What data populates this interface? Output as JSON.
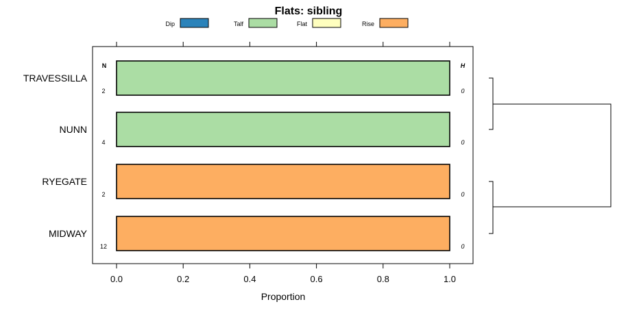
{
  "chart_data": {
    "type": "bar",
    "orientation": "horizontal",
    "stacked": true,
    "title": "Flats: sibling",
    "xlabel": "Proportion",
    "ylabel": "",
    "xlim": [
      0,
      1
    ],
    "x_ticks": [
      "0.0",
      "0.2",
      "0.4",
      "0.6",
      "0.8",
      "1.0"
    ],
    "x_tick_values": [
      0,
      0.2,
      0.4,
      0.6,
      0.8,
      1.0
    ],
    "legend": {
      "placement": "top",
      "items": [
        {
          "label": "Dip",
          "color": "#2b83ba"
        },
        {
          "label": "Talf",
          "color": "#abdda4"
        },
        {
          "label": "Flat",
          "color": "#ffffbf"
        },
        {
          "label": "Rise",
          "color": "#fdae61"
        }
      ]
    },
    "n_header": "N",
    "h_header": "H",
    "categories": [
      "TRAVESSILLA",
      "NUNN",
      "RYEGATE",
      "MIDWAY"
    ],
    "counts": [
      "2",
      "4",
      "2",
      "12"
    ],
    "entropy": [
      "0",
      "0",
      "0",
      "0"
    ],
    "series": [
      {
        "name": "Dip",
        "values": [
          0,
          0,
          0,
          0
        ]
      },
      {
        "name": "Talf",
        "values": [
          1,
          1,
          0,
          0
        ]
      },
      {
        "name": "Flat",
        "values": [
          0,
          0,
          0,
          0
        ]
      },
      {
        "name": "Rise",
        "values": [
          0,
          0,
          1,
          1
        ]
      }
    ],
    "dendrogram": "two clusters: TRAVESSILLA+NUNN, RYEGATE+MIDWAY"
  }
}
